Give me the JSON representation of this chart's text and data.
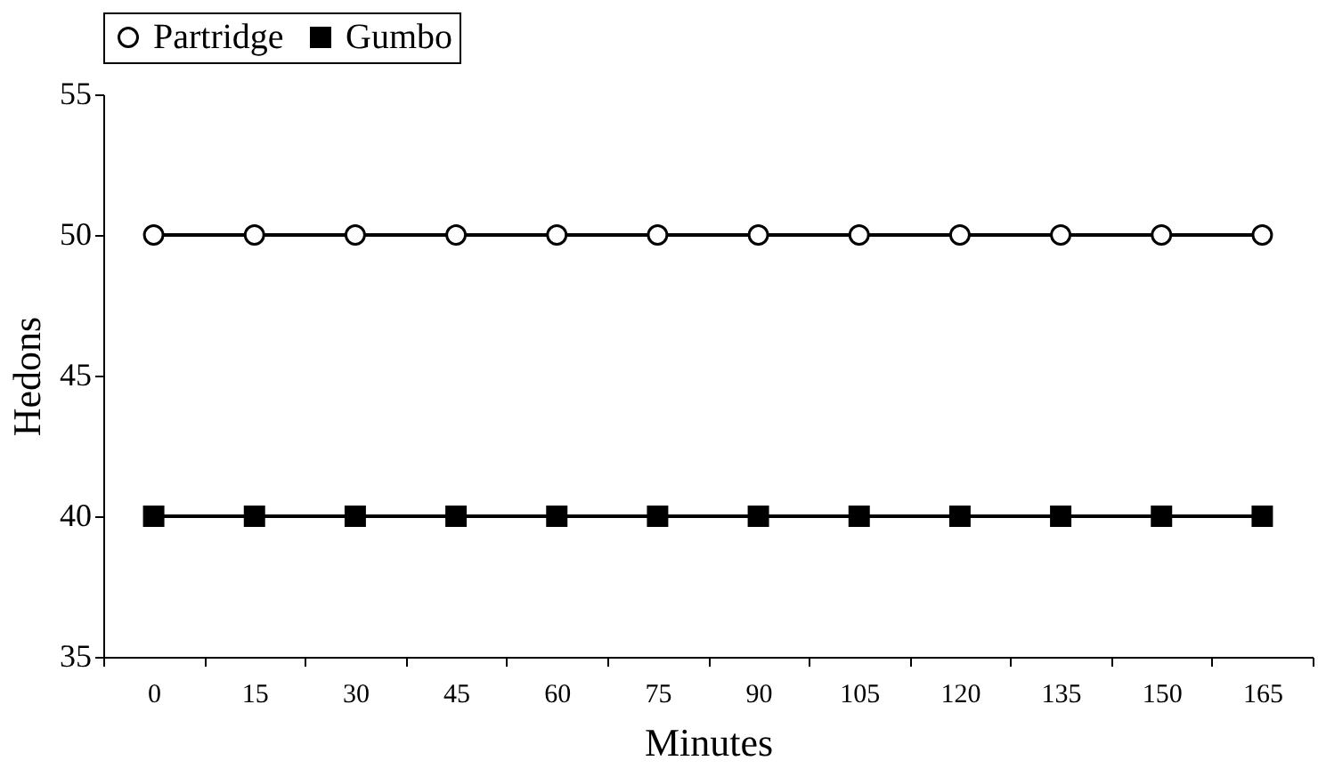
{
  "chart_data": {
    "type": "line",
    "xlabel": "Minutes",
    "ylabel": "Hedons",
    "categories": [
      "0",
      "15",
      "30",
      "45",
      "60",
      "75",
      "90",
      "105",
      "120",
      "135",
      "150",
      "165"
    ],
    "series": [
      {
        "name": "Partridge",
        "color": "#000000",
        "marker": "circle",
        "values": [
          50,
          50,
          50,
          50,
          50,
          50,
          50,
          50,
          50,
          50,
          50,
          50
        ]
      },
      {
        "name": "Gumbo",
        "color": "#000000",
        "marker": "square",
        "values": [
          40,
          40,
          40,
          40,
          40,
          40,
          40,
          40,
          40,
          40,
          40,
          40
        ]
      }
    ],
    "ylim": [
      35,
      55
    ],
    "yticks": [
      35,
      40,
      45,
      50,
      55
    ],
    "grid": false,
    "legend": "top",
    "line_style": "solid"
  }
}
